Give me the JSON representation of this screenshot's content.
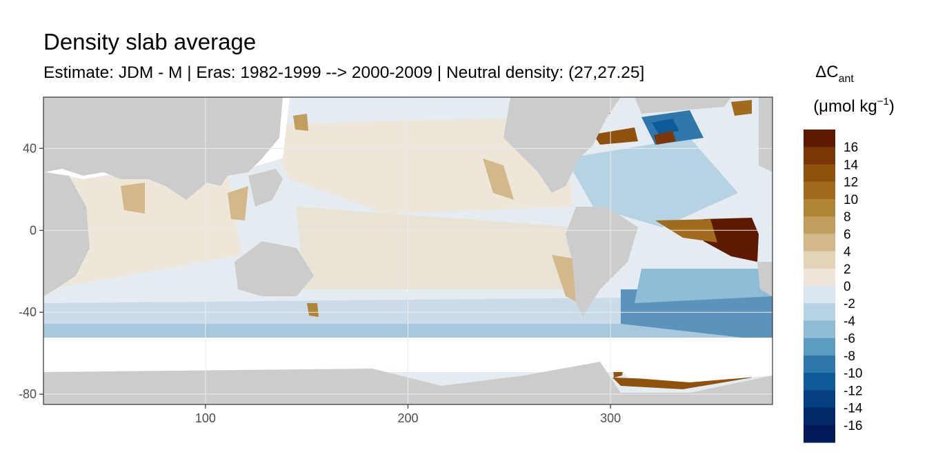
{
  "chart_data": {
    "type": "heatmap",
    "title": "Density slab average",
    "subtitle": "Estimate: JDM - M | Eras: 1982-1999 --> 2000-2009 | Neutral density: (27,27.25]",
    "xlabel": "",
    "ylabel": "",
    "xlim": [
      20,
      380
    ],
    "ylim": [
      -85,
      65
    ],
    "x_ticks": [
      100,
      200,
      300
    ],
    "y_ticks": [
      40,
      0,
      -40,
      -80
    ],
    "grid": true,
    "legend": {
      "position": "right",
      "title_main": "ΔC",
      "title_sub": "ant",
      "title_unit_open": "(μmol kg",
      "title_unit_sup": "−1",
      "title_unit_close": ")",
      "labels": [
        "16",
        "14",
        "12",
        "10",
        "8",
        "6",
        "4",
        "2",
        "0",
        "-2",
        "-4",
        "-6",
        "-8",
        "-10",
        "-12",
        "-14",
        "-16"
      ],
      "colors": [
        "#5e1a00",
        "#7a3606",
        "#8f510d",
        "#a06b1c",
        "#b08435",
        "#c09e5e",
        "#d3b98a",
        "#e4d4b7",
        "#ede6d9",
        "#dae7ef",
        "#b6d3e3",
        "#8fbcd5",
        "#5c9cc3",
        "#2e77ac",
        "#0f5a98",
        "#053f82",
        "#02286a",
        "#011b5a"
      ]
    },
    "land_color": "#cccccc",
    "no_data_color": "#ffffff"
  }
}
